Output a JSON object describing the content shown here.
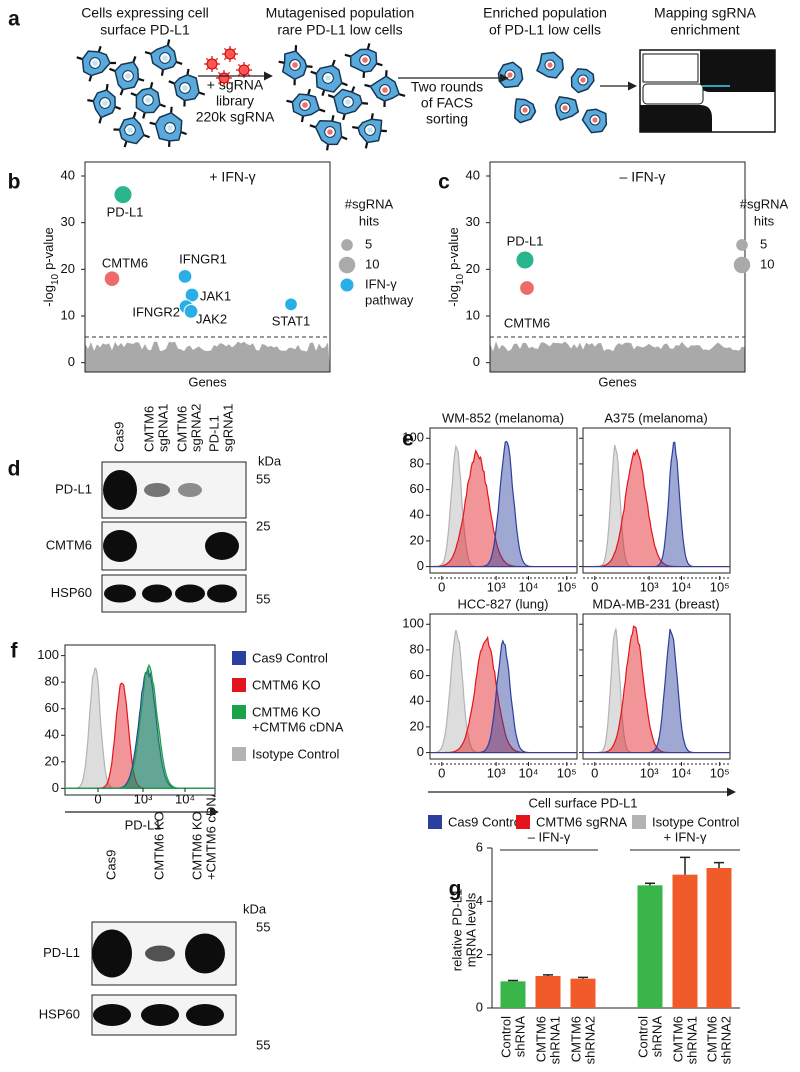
{
  "panel_labels": [
    "a",
    "b",
    "c",
    "d",
    "e",
    "f",
    "g"
  ],
  "panel_a": {
    "steps": [
      [
        "Cells expressing cell",
        "surface PD-L1"
      ],
      [
        "Mutagenised population",
        "rare PD-L1 low cells"
      ],
      [
        "Enriched population",
        "of PD-L1 low cells"
      ],
      [
        "Mapping sgRNA",
        "enrichment"
      ]
    ],
    "library": [
      "+ sgRNA",
      "library",
      "220k sgRNA"
    ],
    "sorting": [
      "Two rounds",
      "of FACS",
      "sorting"
    ]
  },
  "panel_b": {
    "title": "+ IFN-γ",
    "ylabel": [
      "-log",
      "10",
      "p-value"
    ],
    "xlabel": "Genes",
    "ylim": [
      -2,
      43
    ],
    "yticks": [
      0,
      10,
      20,
      30,
      40
    ],
    "threshold": 5.5,
    "points": [
      {
        "name": "PD-L1",
        "value": 36,
        "size": 12,
        "color": "#2bb58f"
      },
      {
        "name": "CMTM6",
        "value": 18,
        "size": 9,
        "color": "#ee6b6b"
      },
      {
        "name": "IFNGR1",
        "value": 18.5,
        "size": 7,
        "color": "#29aee8"
      },
      {
        "name": "JAK1",
        "value": 14.5,
        "size": 7,
        "color": "#29aee8"
      },
      {
        "name": "IFNGR2",
        "value": 12,
        "size": 7,
        "color": "#29aee8"
      },
      {
        "name": "JAK2",
        "value": 11,
        "size": 7,
        "color": "#29aee8"
      },
      {
        "name": "STAT1",
        "value": 12.5,
        "size": 6,
        "color": "#29aee8"
      }
    ],
    "legend": {
      "title": [
        "#sgRNA",
        "hits"
      ],
      "sizes": [
        5,
        10
      ],
      "size_color": "#aaaaaa",
      "pathway": [
        "IFN-γ",
        "pathway"
      ],
      "pathway_color": "#29aee8"
    }
  },
  "panel_c": {
    "title": "– IFN-γ",
    "ylabel": [
      "-log",
      "10",
      "p-value"
    ],
    "xlabel": "Genes",
    "ylim": [
      -2,
      43
    ],
    "yticks": [
      0,
      10,
      20,
      30,
      40
    ],
    "threshold": 5.5,
    "points": [
      {
        "name": "PD-L1",
        "value": 22,
        "size": 12,
        "color": "#2bb58f"
      },
      {
        "name": "CMTM6",
        "value": 16,
        "size": 8,
        "color": "#ee6b6b"
      }
    ],
    "legend": {
      "title": [
        "#sgRNA",
        "hits"
      ],
      "sizes": [
        5,
        10
      ],
      "size_color": "#aaaaaa"
    }
  },
  "panel_d": {
    "lanes": [
      [
        "Cas9"
      ],
      [
        "CMTM6",
        "sgRNA1"
      ],
      [
        "CMTM6",
        "sgRNA2"
      ],
      [
        "PD-L1",
        "sgRNA1"
      ]
    ],
    "kda": "kDa",
    "rows": [
      {
        "label": "PD-L1",
        "marker": "55"
      },
      {
        "label": "CMTM6",
        "marker": "25"
      },
      {
        "label": "HSP60",
        "marker": "55"
      }
    ]
  },
  "panel_e": {
    "titles": [
      "WM-852 (melanoma)",
      "A375 (melanoma)",
      "HCC-827 (lung)",
      "MDA-MB-231 (breast)"
    ],
    "ylim": [
      -5,
      108
    ],
    "yticks": [
      0,
      20,
      40,
      60,
      80,
      100
    ],
    "xticks": [
      "0",
      "10³",
      "10⁴",
      "10⁵"
    ],
    "xlabel": "Cell surface PD-L1",
    "legend": [
      {
        "name": "Cas9 Control",
        "color": "#2b3f9e"
      },
      {
        "name": "CMTM6 sgRNA",
        "color": "#e3141b"
      },
      {
        "name": "Isotype Control",
        "color": "#b3b3b3"
      }
    ]
  },
  "panel_f": {
    "ylim": [
      -5,
      108
    ],
    "yticks": [
      0,
      20,
      40,
      60,
      80,
      100
    ],
    "xticks": [
      "0",
      "10³",
      "10⁴"
    ],
    "xlabel": "PD-L1",
    "legend": [
      {
        "name": [
          "Cas9 Control"
        ],
        "color": "#2b3f9e"
      },
      {
        "name": [
          "CMTM6 KO"
        ],
        "color": "#e3141b"
      },
      {
        "name": [
          "CMTM6 KO",
          "+CMTM6 cDNA"
        ],
        "color": "#1aa34a"
      },
      {
        "name": [
          "Isotype Control"
        ],
        "color": "#b3b3b3"
      }
    ],
    "blot": {
      "lanes": [
        [
          "Cas9"
        ],
        [
          "CMTM6 KO"
        ],
        [
          "CMTM6 KO",
          "+CMTM6 cDNA"
        ]
      ],
      "kda": "kDa",
      "rows": [
        {
          "label": "PD-L1",
          "marker": "55"
        },
        {
          "label": "HSP60",
          "marker": "55"
        }
      ]
    }
  },
  "chart_data": {
    "type": "bar",
    "ylabel": [
      "relative PD-L1",
      "mRNA levels"
    ],
    "groups": [
      {
        "label": "– IFN-γ"
      },
      {
        "label": "+ IFN-γ"
      }
    ],
    "categories": [
      [
        "Control",
        "shRNA"
      ],
      [
        "CMTM6",
        "shRNA1"
      ],
      [
        "CMTM6",
        "shRNA2"
      ],
      [
        "Control",
        "shRNA"
      ],
      [
        "CMTM6",
        "shRNA1"
      ],
      [
        "CMTM6",
        "shRNA2"
      ]
    ],
    "values": [
      1.0,
      1.2,
      1.1,
      4.6,
      5.0,
      5.25
    ],
    "errors": [
      0.03,
      0.04,
      0.05,
      0.08,
      0.65,
      0.2
    ],
    "colors": [
      "#39b54a",
      "#f15a29",
      "#f15a29",
      "#39b54a",
      "#f15a29",
      "#f15a29"
    ],
    "ylim": [
      0,
      6
    ],
    "yticks": [
      0,
      2,
      4,
      6
    ]
  }
}
